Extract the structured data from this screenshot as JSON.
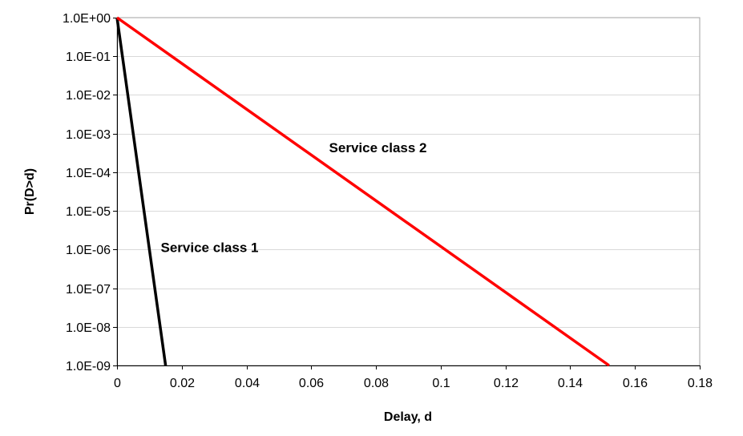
{
  "chart_data": {
    "type": "line",
    "title": "",
    "xlabel": "Delay, d",
    "ylabel": "Pr(D>d)",
    "xlim": [
      0,
      0.18
    ],
    "ylim": [
      1e-09,
      1
    ],
    "yscale": "log",
    "grid": {
      "x": false,
      "y": true
    },
    "legend": "none",
    "x_ticks": [
      "0",
      "0.02",
      "0.04",
      "0.06",
      "0.08",
      "0.1",
      "0.12",
      "0.14",
      "0.16",
      "0.18"
    ],
    "x_tick_values": [
      0,
      0.02,
      0.04,
      0.06,
      0.08,
      0.1,
      0.12,
      0.14,
      0.16,
      0.18
    ],
    "y_ticks": [
      "1.0E+00",
      "1.0E-01",
      "1.0E-02",
      "1.0E-03",
      "1.0E-04",
      "1.0E-05",
      "1.0E-06",
      "1.0E-07",
      "1.0E-08",
      "1.0E-09"
    ],
    "y_tick_values": [
      1,
      0.1,
      0.01,
      0.001,
      0.0001,
      1e-05,
      1e-06,
      1e-07,
      1e-08,
      1e-09
    ],
    "series": [
      {
        "label": "Service class 1",
        "color": "#000000",
        "points": [
          [
            0,
            1
          ],
          [
            0.015,
            1e-09
          ]
        ]
      },
      {
        "label": "Service class 2",
        "color": "#ff0000",
        "points": [
          [
            0,
            1
          ],
          [
            0.152,
            1e-09
          ]
        ]
      }
    ],
    "annotations": [
      {
        "text": "Service class 2",
        "x": 0.0655,
        "y": 0.00033
      },
      {
        "text": "Service class 1",
        "x": 0.0135,
        "y": 8.5e-07
      }
    ]
  }
}
